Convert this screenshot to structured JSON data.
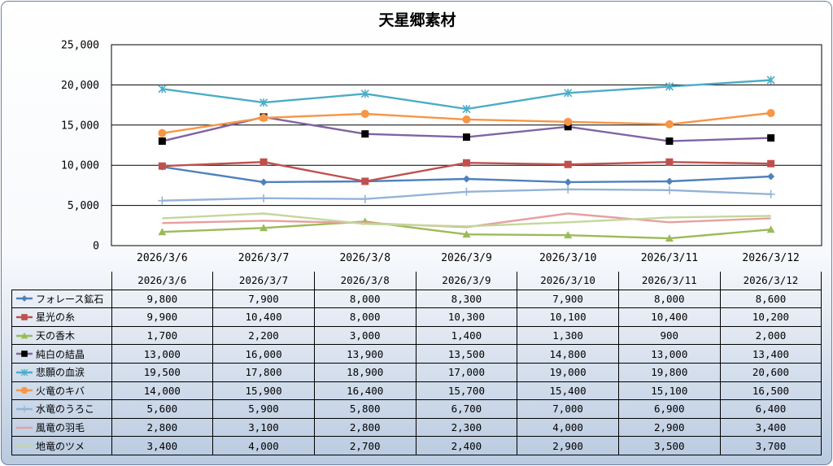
{
  "chart_data": {
    "type": "line",
    "title": "天星郷素材",
    "xlabel": "",
    "ylabel": "",
    "ylim": [
      0,
      25000
    ],
    "yticks": [
      0,
      5000,
      10000,
      15000,
      20000,
      25000
    ],
    "ytick_labels": [
      "0",
      "5,000",
      "10,000",
      "15,000",
      "20,000",
      "25,000"
    ],
    "grid": true,
    "legend": "data-table-below",
    "categories": [
      "2026/3/6",
      "2026/3/7",
      "2026/3/8",
      "2026/3/9",
      "2026/3/10",
      "2026/3/11",
      "2026/3/12"
    ],
    "series": [
      {
        "name": "フォレース鉱石",
        "color": "#4f81bd",
        "marker": "diamond",
        "values": [
          9800,
          7900,
          8000,
          8300,
          7900,
          8000,
          8600
        ],
        "labels": [
          "9,800",
          "7,900",
          "8,000",
          "8,300",
          "7,900",
          "8,000",
          "8,600"
        ]
      },
      {
        "name": "星光の糸",
        "color": "#c0504d",
        "marker": "square",
        "values": [
          9900,
          10400,
          8000,
          10300,
          10100,
          10400,
          10200
        ],
        "labels": [
          "9,900",
          "10,400",
          "8,000",
          "10,300",
          "10,100",
          "10,400",
          "10,200"
        ]
      },
      {
        "name": "天の香木",
        "color": "#9bbb59",
        "marker": "triangle",
        "values": [
          1700,
          2200,
          3000,
          1400,
          1300,
          900,
          2000
        ],
        "labels": [
          "1,700",
          "2,200",
          "3,000",
          "1,400",
          "1,300",
          "900",
          "2,000"
        ]
      },
      {
        "name": "純白の結晶",
        "color": "#8064a2",
        "marker": "blacksquare",
        "values": [
          13000,
          16000,
          13900,
          13500,
          14800,
          13000,
          13400
        ],
        "labels": [
          "13,000",
          "16,000",
          "13,900",
          "13,500",
          "14,800",
          "13,000",
          "13,400"
        ]
      },
      {
        "name": "悲願の血涙",
        "color": "#4bacc6",
        "marker": "star",
        "values": [
          19500,
          17800,
          18900,
          17000,
          19000,
          19800,
          20600
        ],
        "labels": [
          "19,500",
          "17,800",
          "18,900",
          "17,000",
          "19,000",
          "19,800",
          "20,600"
        ]
      },
      {
        "name": "火竜のキバ",
        "color": "#f79646",
        "marker": "circle",
        "values": [
          14000,
          15900,
          16400,
          15700,
          15400,
          15100,
          16500
        ],
        "labels": [
          "14,000",
          "15,900",
          "16,400",
          "15,700",
          "15,400",
          "15,100",
          "16,500"
        ]
      },
      {
        "name": "水竜のうろこ",
        "color": "#95b3d7",
        "marker": "plus",
        "values": [
          5600,
          5900,
          5800,
          6700,
          7000,
          6900,
          6400
        ],
        "labels": [
          "5,600",
          "5,900",
          "5,800",
          "6,700",
          "7,000",
          "6,900",
          "6,400"
        ]
      },
      {
        "name": "風竜の羽毛",
        "color": "#e6a0a0",
        "marker": "none",
        "values": [
          2800,
          3100,
          2800,
          2300,
          4000,
          2900,
          3400
        ],
        "labels": [
          "2,800",
          "3,100",
          "2,800",
          "2,300",
          "4,000",
          "2,900",
          "3,400"
        ]
      },
      {
        "name": "地竜のツメ",
        "color": "#c4d79b",
        "marker": "none",
        "values": [
          3400,
          4000,
          2700,
          2400,
          2900,
          3500,
          3700
        ],
        "labels": [
          "3,400",
          "4,000",
          "2,700",
          "2,400",
          "2,900",
          "3,500",
          "3,700"
        ]
      }
    ]
  }
}
